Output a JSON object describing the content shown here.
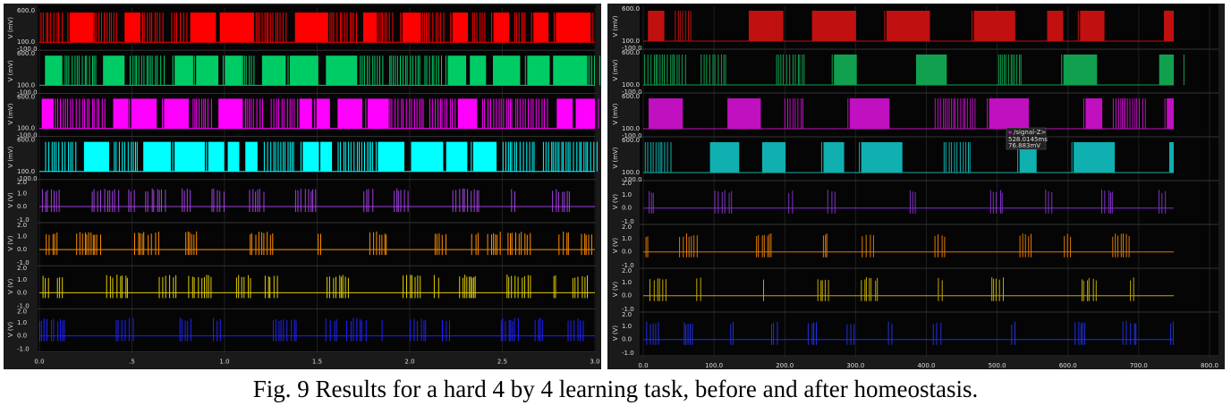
{
  "panels": [
    {
      "x_ticks": [
        "0.0",
        ".5",
        "1.0",
        "1.5",
        "2.0",
        "2.5",
        "3.0"
      ],
      "rows": [
        {
          "y_label": "V (mV)",
          "y_ticks": [
            "600.0",
            "100.0",
            "-100.0"
          ],
          "color": "#ff0000"
        },
        {
          "y_label": "V (mV)",
          "y_ticks": [
            "600.0",
            "100.0",
            "-100.0"
          ],
          "color": "#00cc66"
        },
        {
          "y_label": "V (mV)",
          "y_ticks": [
            "600.0",
            "100.0",
            "-100.0"
          ],
          "color": "#ff00ff"
        },
        {
          "y_label": "V (mV)",
          "y_ticks": [
            "600.0",
            "100.0",
            "-100.0"
          ],
          "color": "#00ffff"
        },
        {
          "y_label": "V (V)",
          "y_ticks": [
            "2.0",
            "1.0",
            "0.0",
            "-1.0"
          ],
          "color": "#a040e0"
        },
        {
          "y_label": "V (V)",
          "y_ticks": [
            "2.0",
            "1.0",
            "0.0",
            "-1.0"
          ],
          "color": "#ff8c00"
        },
        {
          "y_label": "V (V)",
          "y_ticks": [
            "2.0",
            "1.0",
            "0.0",
            "-1.0"
          ],
          "color": "#e0cc00"
        },
        {
          "y_label": "V (V)",
          "y_ticks": [
            "2.0",
            "1.0",
            "0.0",
            "-1.0"
          ],
          "color": "#2020ff"
        }
      ]
    },
    {
      "x_ticks": [
        "0.0",
        "100.0",
        "200.0",
        "300.0",
        "400.0",
        "500.0",
        "600.0",
        "700.0",
        "800.0"
      ],
      "rows": [
        {
          "y_label": "V (mV)",
          "y_ticks": [
            "600.0",
            "100.0",
            "-100.0"
          ],
          "color": "#c01010"
        },
        {
          "y_label": "V (mV)",
          "y_ticks": [
            "600.0",
            "100.0",
            "-100.0"
          ],
          "color": "#10a050"
        },
        {
          "y_label": "V (mV)",
          "y_ticks": [
            "600.0",
            "100.0",
            "-100.0"
          ],
          "color": "#c010c0"
        },
        {
          "y_label": "V (mV)",
          "y_ticks": [
            "600.0",
            "100.0",
            "-100.0"
          ],
          "color": "#10b0b0"
        },
        {
          "y_label": "V (V)",
          "y_ticks": [
            "2.0",
            "1.0",
            "0.0",
            "-1.0"
          ],
          "color": "#8030c8"
        },
        {
          "y_label": "V (V)",
          "y_ticks": [
            "2.0",
            "1.0",
            "0.0",
            "-1.0"
          ],
          "color": "#e07800"
        },
        {
          "y_label": "V (V)",
          "y_ticks": [
            "2.0",
            "1.0",
            "0.0",
            "-1.0"
          ],
          "color": "#c0a800"
        },
        {
          "y_label": "V (V)",
          "y_ticks": [
            "2.0",
            "1.0",
            "0.0",
            "-1.0"
          ],
          "color": "#2030e0"
        }
      ]
    }
  ],
  "tooltip": {
    "name": "/signal-Z>",
    "x": "528.0145ms",
    "y": "76.883mV"
  },
  "caption": "Fig. 9 Results for a hard 4 by 4 learning task, before and after homeostasis."
}
